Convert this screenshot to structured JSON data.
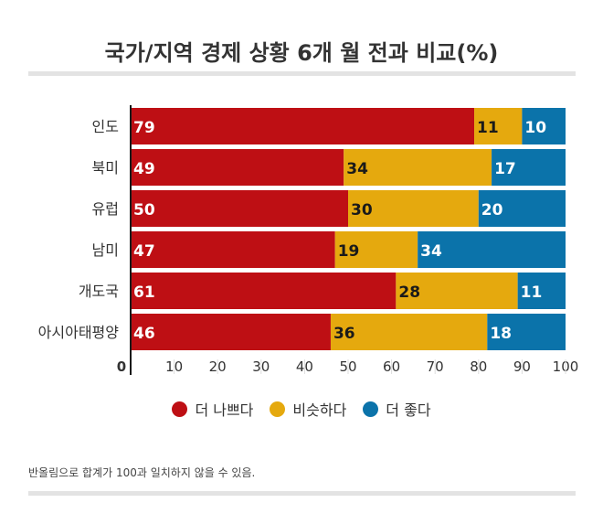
{
  "chart_data": {
    "type": "bar",
    "orientation": "horizontal",
    "stacked": true,
    "title": "국가/지역 경제 상황  6개 월 전과 비교(%)",
    "categories": [
      "인도",
      "북미",
      "유럽",
      "남미",
      "개도국",
      "아시아태평양"
    ],
    "series": [
      {
        "name": "더 나쁘다",
        "color": "#be0f14",
        "values": [
          79,
          49,
          50,
          47,
          61,
          46
        ]
      },
      {
        "name": "비슷하다",
        "color": "#e5a90e",
        "values": [
          11,
          34,
          30,
          19,
          28,
          36
        ]
      },
      {
        "name": "더 좋다",
        "color": "#0b73aa",
        "values": [
          10,
          17,
          20,
          34,
          11,
          18
        ]
      }
    ],
    "xlim": [
      0,
      100
    ],
    "x_ticks": [
      "0",
      "10",
      "20",
      "30",
      "40",
      "50",
      "60",
      "70",
      "80",
      "90",
      "100"
    ],
    "grid": false,
    "legend_position": "bottom",
    "footnote": "반올림으로 합계가 100과 일치하지 않을 수 있음."
  }
}
